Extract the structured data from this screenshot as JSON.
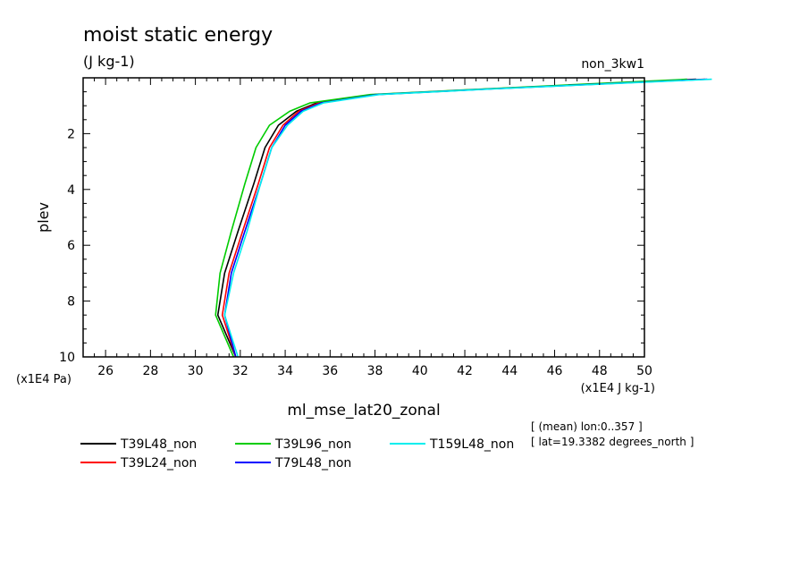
{
  "chart_data": {
    "type": "line",
    "title": "moist static energy",
    "units": "(J kg-1)",
    "experiment": "non_3kw1",
    "ylabel": "plev",
    "y_units": "(x1E4 Pa)",
    "x_units": "(x1E4 J kg-1)",
    "xlabel": "ml_mse_lat20_zonal",
    "xlim": [
      25,
      50
    ],
    "ylim": [
      0,
      10
    ],
    "y_inverted": true,
    "x_ticks": [
      26,
      28,
      30,
      32,
      34,
      36,
      38,
      40,
      42,
      44,
      46,
      48,
      50
    ],
    "y_ticks": [
      2,
      4,
      6,
      8,
      10
    ],
    "info": [
      "[ (mean) lon:0..357 ]",
      "[ lat=19.3382 degrees_north ]"
    ],
    "legend": "below-plot",
    "series": [
      {
        "name": "T39L48_non",
        "color": "#000000",
        "points": [
          [
            31.8,
            10
          ],
          [
            31.0,
            8.5
          ],
          [
            31.3,
            7.0
          ],
          [
            31.9,
            5.5
          ],
          [
            32.6,
            3.8
          ],
          [
            33.1,
            2.5
          ],
          [
            33.7,
            1.7
          ],
          [
            34.5,
            1.2
          ],
          [
            35.4,
            0.9
          ],
          [
            38.0,
            0.6
          ],
          [
            43.0,
            0.4
          ],
          [
            52.3,
            0.05
          ]
        ]
      },
      {
        "name": "T39L24_non",
        "color": "#ff0000",
        "points": [
          [
            31.8,
            10
          ],
          [
            31.2,
            8.5
          ],
          [
            31.5,
            7.0
          ],
          [
            32.1,
            5.5
          ],
          [
            32.8,
            3.8
          ],
          [
            33.3,
            2.5
          ],
          [
            33.9,
            1.7
          ],
          [
            34.6,
            1.2
          ],
          [
            35.5,
            0.9
          ],
          [
            38.0,
            0.6
          ],
          [
            43.0,
            0.4
          ],
          [
            52.7,
            0.05
          ]
        ]
      },
      {
        "name": "T39L96_non",
        "color": "#00cc00",
        "points": [
          [
            31.7,
            10
          ],
          [
            30.9,
            8.5
          ],
          [
            31.1,
            7.0
          ],
          [
            31.6,
            5.5
          ],
          [
            32.2,
            3.8
          ],
          [
            32.7,
            2.5
          ],
          [
            33.3,
            1.7
          ],
          [
            34.2,
            1.2
          ],
          [
            35.1,
            0.9
          ],
          [
            37.8,
            0.6
          ],
          [
            42.8,
            0.4
          ],
          [
            51.9,
            0.05
          ]
        ]
      },
      {
        "name": "T79L48_non",
        "color": "#0000ff",
        "points": [
          [
            31.8,
            10
          ],
          [
            31.3,
            8.5
          ],
          [
            31.6,
            7.0
          ],
          [
            32.2,
            5.5
          ],
          [
            32.9,
            3.8
          ],
          [
            33.4,
            2.5
          ],
          [
            34.0,
            1.7
          ],
          [
            34.7,
            1.2
          ],
          [
            35.6,
            0.9
          ],
          [
            38.1,
            0.6
          ],
          [
            43.1,
            0.4
          ],
          [
            52.8,
            0.05
          ]
        ]
      },
      {
        "name": "T159L48_non",
        "color": "#00eeee",
        "points": [
          [
            31.9,
            10
          ],
          [
            31.3,
            8.5
          ],
          [
            31.7,
            7.0
          ],
          [
            32.3,
            5.5
          ],
          [
            32.9,
            3.8
          ],
          [
            33.4,
            2.5
          ],
          [
            34.1,
            1.7
          ],
          [
            34.8,
            1.2
          ],
          [
            35.7,
            0.9
          ],
          [
            38.2,
            0.6
          ],
          [
            43.2,
            0.4
          ],
          [
            53.0,
            0.05
          ]
        ]
      }
    ]
  }
}
